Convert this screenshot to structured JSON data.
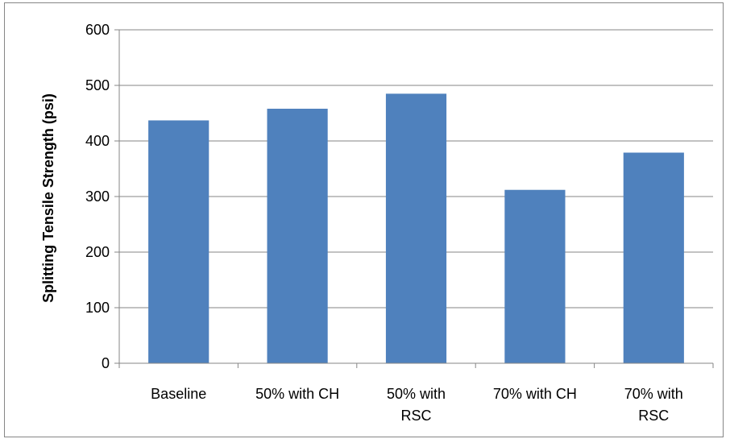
{
  "chart_data": {
    "type": "bar",
    "categories": [
      [
        "Baseline"
      ],
      [
        "50% with CH"
      ],
      [
        "50% with",
        "RSC"
      ],
      [
        "70% with CH"
      ],
      [
        "70% with",
        "RSC"
      ]
    ],
    "values": [
      437,
      458,
      485,
      312,
      379
    ],
    "ylabel": "Splitting Tensile Strength (psi)",
    "xlabel": "",
    "title": "",
    "ylim": [
      0,
      600
    ],
    "yticks": [
      0,
      100,
      200,
      300,
      400,
      500,
      600
    ],
    "grid": true,
    "legend": "none",
    "bar_color": "#4F81BD",
    "grid_color": "#868686"
  }
}
